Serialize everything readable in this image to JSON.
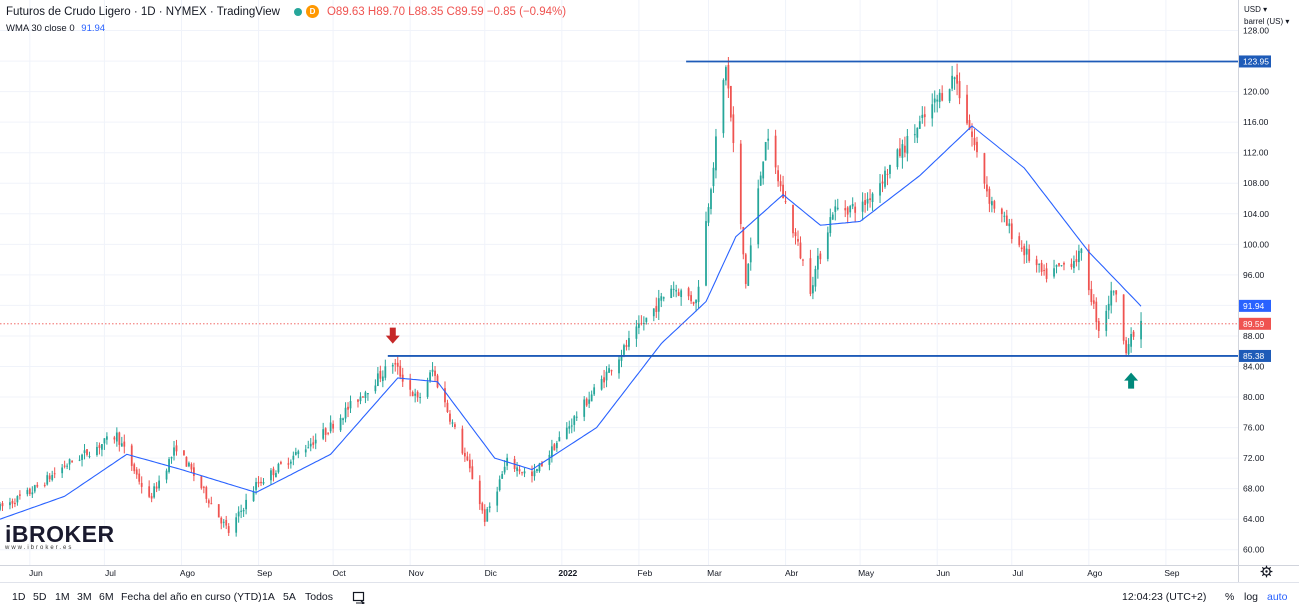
{
  "header": {
    "symbol": "Futuros de Crudo Ligero · 1D · NYMEX · TradingView",
    "badge": "D",
    "ohlc": "O89.63 H89.70 L88.35 C89.59 −0.85 (−0.94%)",
    "indicator_label": "WMA 30 close 0",
    "indicator_value": "91.94"
  },
  "currency": {
    "line1": "USD ▾",
    "line2": "barrel (US) ▾"
  },
  "logo": {
    "brand": "iBROKER",
    "site": "www.ibroker.es"
  },
  "toolbar": {
    "ranges": [
      "1D",
      "5D",
      "1M",
      "3M",
      "6M",
      "Fecha del año en curso (YTD)",
      "1A",
      "5A",
      "Todos"
    ],
    "time": "12:04:23 (UTC+2)",
    "percent": "%",
    "log": "log",
    "auto": "auto",
    "compare_icon": "compare-icon",
    "settings_icon": "gear-icon"
  },
  "colors": {
    "up": "#26a69a",
    "down": "#ef5350",
    "wma": "#2962ff",
    "level": "#1e5bb8",
    "grid": "#f0f3fa",
    "down_arrow": "#c62828",
    "up_arrow": "#00897b"
  },
  "chart_data": {
    "type": "candlestick",
    "title": "Futuros de Crudo Ligero · 1D · NYMEX",
    "ylim": [
      58,
      132
    ],
    "y_ticks": [
      60,
      64,
      68,
      72,
      76,
      80,
      84,
      88,
      92,
      96,
      100,
      104,
      108,
      112,
      116,
      120,
      124,
      128
    ],
    "x_ticks": [
      "Jun",
      "Jul",
      "Ago",
      "Sep",
      "Oct",
      "Nov",
      "Dic",
      "2022",
      "Feb",
      "Mar",
      "Abr",
      "May",
      "Jun",
      "Jul",
      "Ago",
      "Sep"
    ],
    "x_domain": [
      "2021-05-20",
      "2022-09-30"
    ],
    "candle_path": {
      "start": "2021-05-20",
      "end": "2022-08-22",
      "anchors": [
        [
          "2021-05-20",
          65.5
        ],
        [
          "2021-06-01",
          67.5
        ],
        [
          "2021-06-15",
          71.0
        ],
        [
          "2021-07-06",
          75.0
        ],
        [
          "2021-07-19",
          66.5
        ],
        [
          "2021-07-30",
          73.5
        ],
        [
          "2021-08-20",
          62.3
        ],
        [
          "2021-08-31",
          68.5
        ],
        [
          "2021-09-28",
          75.5
        ],
        [
          "2021-10-25",
          84.5
        ],
        [
          "2021-11-04",
          79.5
        ],
        [
          "2021-11-10",
          83.5
        ],
        [
          "2021-11-26",
          69.5
        ],
        [
          "2021-12-01",
          64.0
        ],
        [
          "2021-12-10",
          71.5
        ],
        [
          "2021-12-20",
          69.5
        ],
        [
          "2022-01-10",
          79.0
        ],
        [
          "2022-01-31",
          88.5
        ],
        [
          "2022-02-14",
          94.5
        ],
        [
          "2022-02-24",
          92.5
        ],
        [
          "2022-03-08",
          123.7
        ],
        [
          "2022-03-16",
          95.0
        ],
        [
          "2022-03-24",
          114.0
        ],
        [
          "2022-04-11",
          94.3
        ],
        [
          "2022-04-20",
          104.5
        ],
        [
          "2022-05-02",
          105.0
        ],
        [
          "2022-05-17",
          112.0
        ],
        [
          "2022-06-08",
          122.1
        ],
        [
          "2022-06-22",
          106.0
        ],
        [
          "2022-07-05",
          99.5
        ],
        [
          "2022-07-14",
          95.8
        ],
        [
          "2022-07-29",
          98.6
        ],
        [
          "2022-08-05",
          89.0
        ],
        [
          "2022-08-11",
          94.3
        ],
        [
          "2022-08-16",
          86.5
        ],
        [
          "2022-08-22",
          89.6
        ]
      ]
    },
    "wma30": {
      "label": "WMA 30 close 0",
      "anchors": [
        [
          "2021-05-20",
          64.0
        ],
        [
          "2021-06-15",
          67.0
        ],
        [
          "2021-07-10",
          72.5
        ],
        [
          "2021-08-01",
          70.5
        ],
        [
          "2021-08-31",
          67.5
        ],
        [
          "2021-09-30",
          72.5
        ],
        [
          "2021-10-27",
          82.5
        ],
        [
          "2021-11-12",
          82.0
        ],
        [
          "2021-12-05",
          72.0
        ],
        [
          "2021-12-20",
          70.5
        ],
        [
          "2022-01-15",
          76.0
        ],
        [
          "2022-02-10",
          87.0
        ],
        [
          "2022-02-28",
          92.5
        ],
        [
          "2022-03-12",
          101.0
        ],
        [
          "2022-03-31",
          106.5
        ],
        [
          "2022-04-15",
          102.5
        ],
        [
          "2022-05-01",
          103.0
        ],
        [
          "2022-05-25",
          109.0
        ],
        [
          "2022-06-15",
          115.5
        ],
        [
          "2022-07-06",
          110.0
        ],
        [
          "2022-08-01",
          99.0
        ],
        [
          "2022-08-22",
          91.9
        ]
      ]
    },
    "levels": [
      {
        "value": 123.95,
        "label": "123.95",
        "from": "2022-02-20"
      },
      {
        "value": 85.38,
        "label": "85.38",
        "from": "2021-10-23"
      }
    ],
    "price_tags": [
      {
        "value": 91.94,
        "label": "91.94",
        "series": "wma30"
      },
      {
        "value": 89.59,
        "label": "89.59",
        "series": "last"
      }
    ],
    "last_price": 89.59,
    "annotations": [
      {
        "type": "arrow-down",
        "date": "2021-10-25",
        "value": 87.0
      },
      {
        "type": "arrow-up",
        "date": "2022-08-18",
        "value": 83.2
      }
    ]
  }
}
